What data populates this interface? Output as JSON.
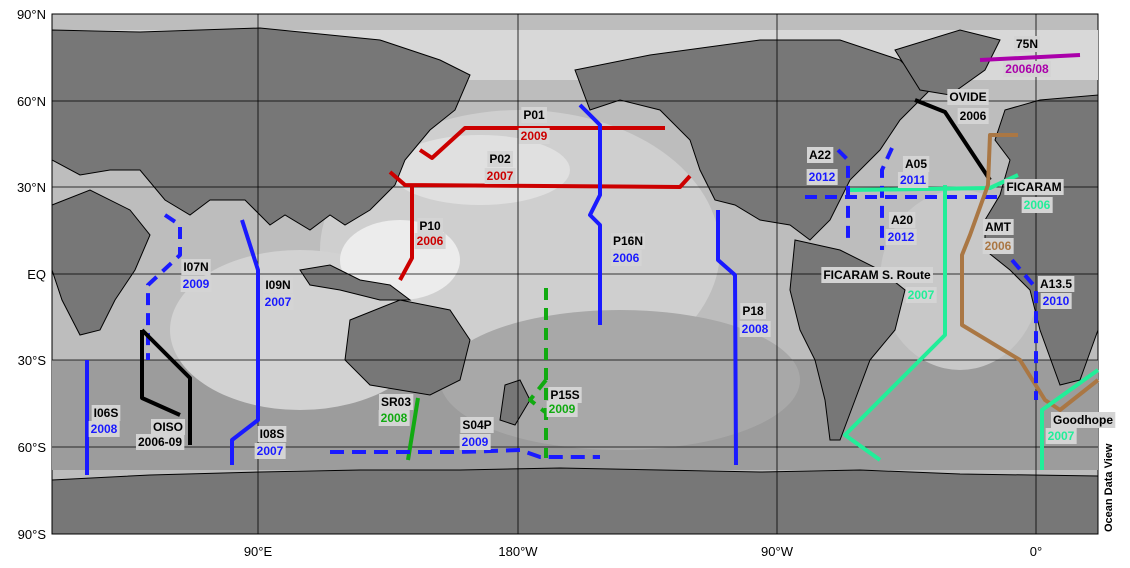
{
  "map": {
    "lon_ticks": [
      "90°E",
      "180°W",
      "90°W",
      "0°"
    ],
    "lat_ticks": [
      "90°N",
      "60°N",
      "30°N",
      "EQ",
      "30°S",
      "60°S",
      "90°S"
    ],
    "watermark": "Ocean Data View"
  },
  "colors": {
    "blue": "#1a1aff",
    "red": "#cc0000",
    "green": "#11aa11",
    "black": "#000000",
    "teal": "#22ee99",
    "brown": "#aa7744",
    "magenta": "#aa00aa"
  },
  "sections": [
    {
      "name": "75N",
      "year": "2006/08"
    },
    {
      "name": "OVIDE",
      "year": "2006"
    },
    {
      "name": "P01",
      "year": "2009"
    },
    {
      "name": "P02",
      "year": "2007"
    },
    {
      "name": "A22",
      "year": "2012"
    },
    {
      "name": "A05",
      "year": "2011"
    },
    {
      "name": "FICARAM",
      "year": "2006"
    },
    {
      "name": "A20",
      "year": "2012"
    },
    {
      "name": "P10",
      "year": "2006"
    },
    {
      "name": "P16N",
      "year": "2006"
    },
    {
      "name": "AMT",
      "year": "2006"
    },
    {
      "name": "I07N",
      "year": "2009"
    },
    {
      "name": "I09N",
      "year": "2007"
    },
    {
      "name": "FICARAM S. Route",
      "year": "2007"
    },
    {
      "name": "A13.5",
      "year": "2010"
    },
    {
      "name": "P18",
      "year": "2008"
    },
    {
      "name": "P15S",
      "year": "2009"
    },
    {
      "name": "SR03",
      "year": "2008"
    },
    {
      "name": "S04P",
      "year": "2009"
    },
    {
      "name": "I06S",
      "year": "2008"
    },
    {
      "name": "OISO",
      "year": "2006-09"
    },
    {
      "name": "I08S",
      "year": "2007"
    },
    {
      "name": "Goodhope",
      "year": "2007"
    }
  ]
}
